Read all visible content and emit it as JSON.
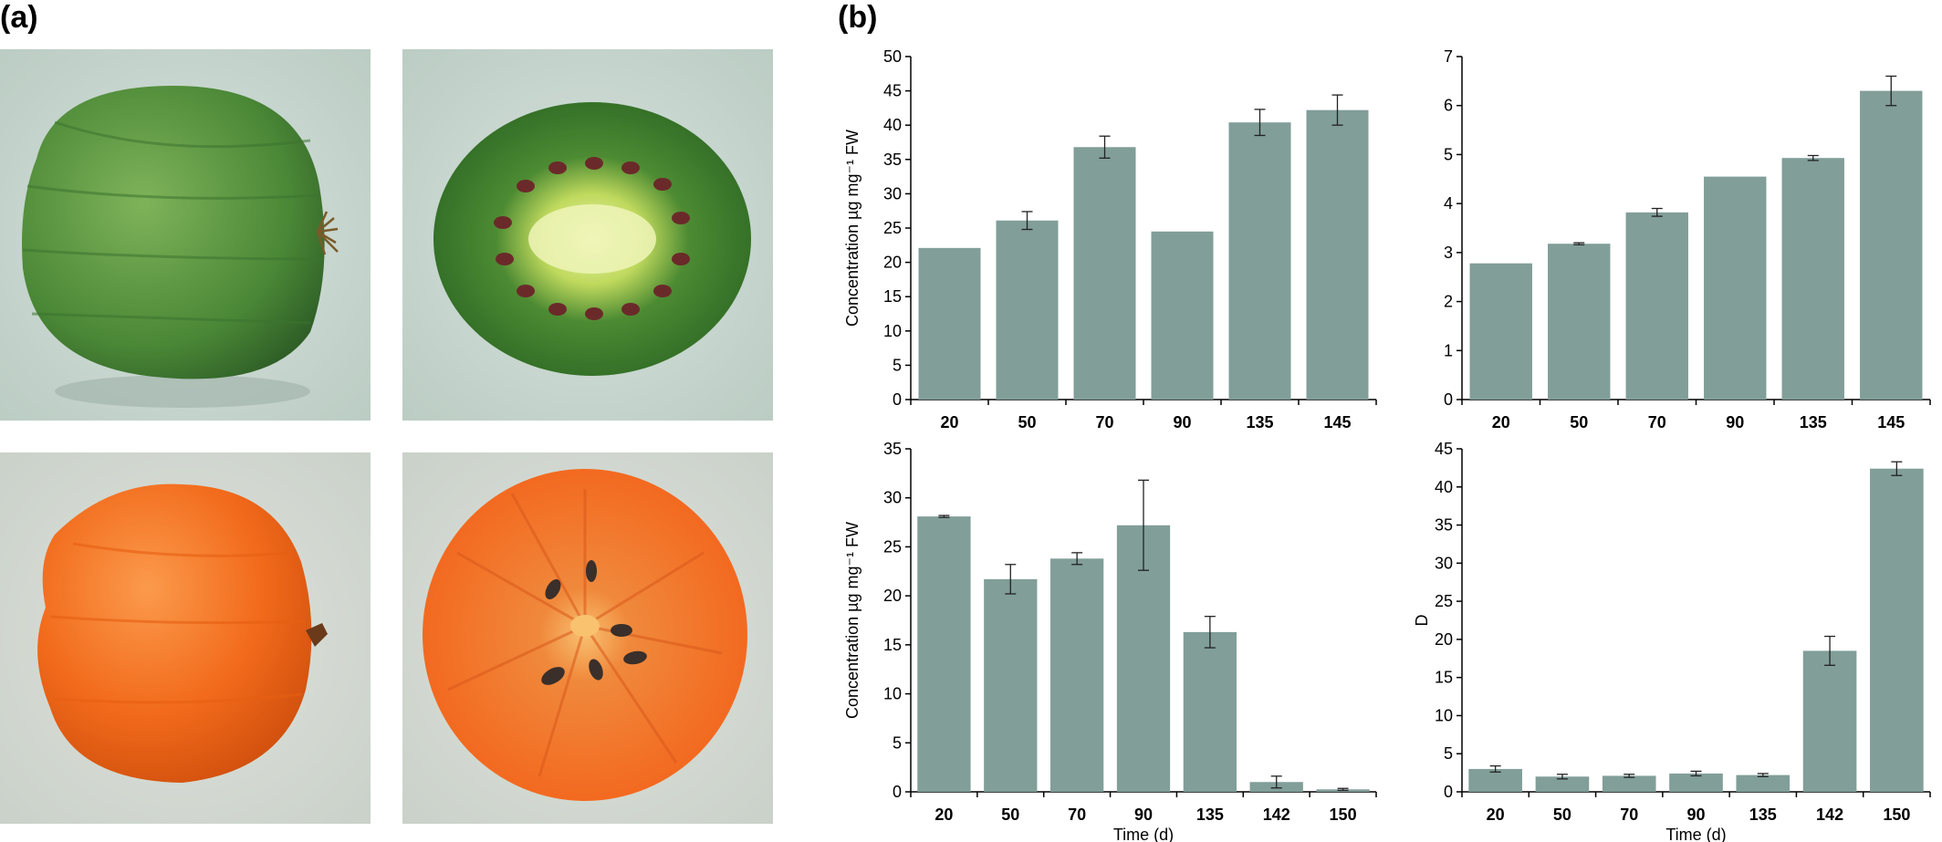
{
  "panels": {
    "a": "(a)",
    "b": "(b)"
  },
  "photos": [
    {
      "name": "green-fruit-whole",
      "description_colors": {
        "skin": "#4f8a3a",
        "background": "#c9d8d0"
      }
    },
    {
      "name": "green-fruit-cut",
      "description_colors": {
        "flesh": "#3e7d2f",
        "core": "#e4f0a8",
        "seeds": "#6b2a2a",
        "background": "#c9d8d0"
      }
    },
    {
      "name": "orange-fruit-whole",
      "description_colors": {
        "skin": "#f26a1b",
        "background": "#d6dcd4"
      }
    },
    {
      "name": "orange-fruit-cut",
      "description_colors": {
        "flesh": "#f07a2e",
        "core": "#f8b063",
        "seeds": "#3a2f2a",
        "background": "#d6dcd4"
      }
    }
  ],
  "colors": {
    "bar": "#819e99",
    "axis": "#000000"
  },
  "chart_data": [
    {
      "type": "bar",
      "categories": [
        "20",
        "50",
        "70",
        "90",
        "135",
        "145"
      ],
      "values": [
        22.1,
        26.1,
        36.8,
        24.5,
        40.4,
        42.2
      ],
      "errors": [
        0,
        1.3,
        1.6,
        0,
        1.9,
        2.2
      ],
      "ylim": [
        0,
        50
      ],
      "yticks": [
        "0",
        "5",
        "10",
        "15",
        "20",
        "25",
        "30",
        "35",
        "40",
        "45",
        "50"
      ],
      "ylabel": "Concentration µg mg⁻¹ FW",
      "xlabel": ""
    },
    {
      "type": "bar",
      "categories": [
        "20",
        "50",
        "70",
        "90",
        "135",
        "145"
      ],
      "values": [
        2.78,
        3.18,
        3.82,
        4.55,
        4.93,
        6.3
      ],
      "errors": [
        0,
        0.02,
        0.08,
        0,
        0.05,
        0.3
      ],
      "ylim": [
        0,
        7
      ],
      "yticks": [
        "0",
        "1",
        "2",
        "3",
        "4",
        "5",
        "6",
        "7"
      ],
      "ylabel": "",
      "xlabel": ""
    },
    {
      "type": "bar",
      "categories": [
        "20",
        "50",
        "70",
        "90",
        "135",
        "142",
        "150"
      ],
      "values": [
        28.1,
        21.7,
        23.8,
        27.2,
        16.3,
        1.0,
        0.25
      ],
      "errors": [
        0.1,
        1.5,
        0.6,
        4.6,
        1.6,
        0.6,
        0.1
      ],
      "ylim": [
        0,
        35
      ],
      "yticks": [
        "0",
        "5",
        "10",
        "15",
        "20",
        "25",
        "30",
        "35"
      ],
      "ylabel": "Concentration µg mg⁻¹ FW",
      "xlabel": "Time (d)"
    },
    {
      "type": "bar",
      "categories": [
        "20",
        "50",
        "70",
        "90",
        "135",
        "142",
        "150"
      ],
      "values": [
        3.0,
        2.0,
        2.1,
        2.4,
        2.2,
        18.5,
        42.4
      ],
      "errors": [
        0.4,
        0.3,
        0.2,
        0.3,
        0.2,
        1.9,
        0.9
      ],
      "ylim": [
        0,
        45
      ],
      "yticks": [
        "0",
        "5",
        "10",
        "15",
        "20",
        "25",
        "30",
        "35",
        "40",
        "45"
      ],
      "ylabel": "D",
      "xlabel": "Time (d)"
    }
  ]
}
